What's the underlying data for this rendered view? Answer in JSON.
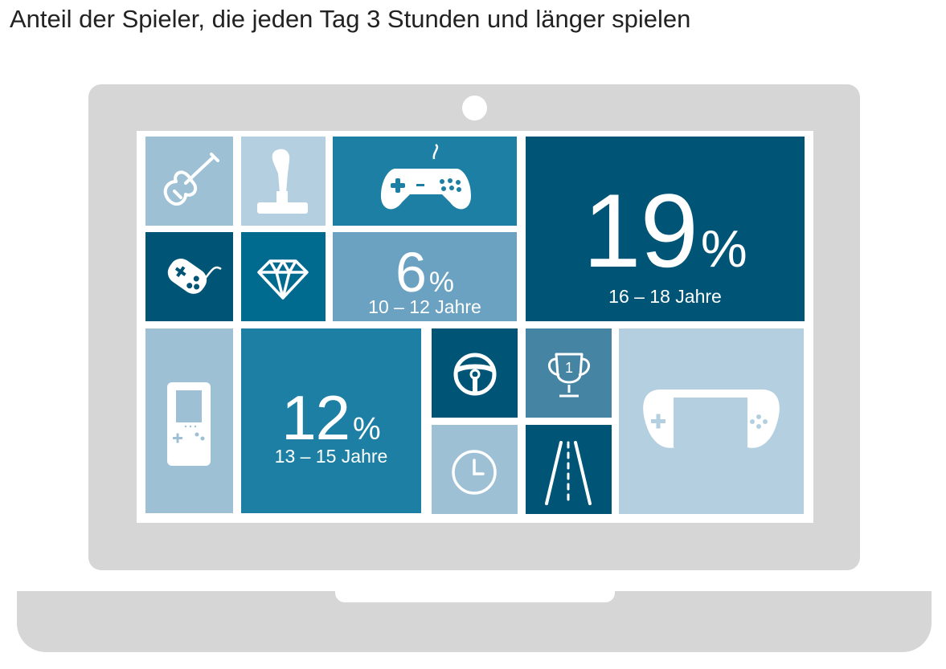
{
  "title": "Anteil der Spieler, die jeden Tag 3 Stunden und länger spielen",
  "chart_data": {
    "type": "table",
    "title": "Anteil der Spieler, die jeden Tag 3 Stunden und länger spielen",
    "unit": "%",
    "categories": [
      "10 – 12 Jahre",
      "13 – 15 Jahre",
      "16 – 18 Jahre"
    ],
    "values": [
      6,
      12,
      19
    ]
  },
  "tiles": [
    {
      "value": "6",
      "unit": "%",
      "label": "10 – 12 Jahre"
    },
    {
      "value": "12",
      "unit": "%",
      "label": "13 – 15 Jahre"
    },
    {
      "value": "19",
      "unit": "%",
      "label": "16 – 18 Jahre"
    }
  ],
  "colors": {
    "lightest": "#b3cfe0",
    "light": "#9ec0d5",
    "mid": "#6ba2c1",
    "teal": "#1c7fa3",
    "slate": "#4585a3",
    "dark": "#005577",
    "laptop": "#d6d6d6"
  },
  "icons": [
    "guitar-icon",
    "joystick-icon",
    "gamepad-icon",
    "retro-controller-icon",
    "diamond-icon",
    "handheld-console-icon",
    "steering-wheel-icon",
    "trophy-icon",
    "clock-icon",
    "road-icon",
    "portable-console-icon"
  ]
}
